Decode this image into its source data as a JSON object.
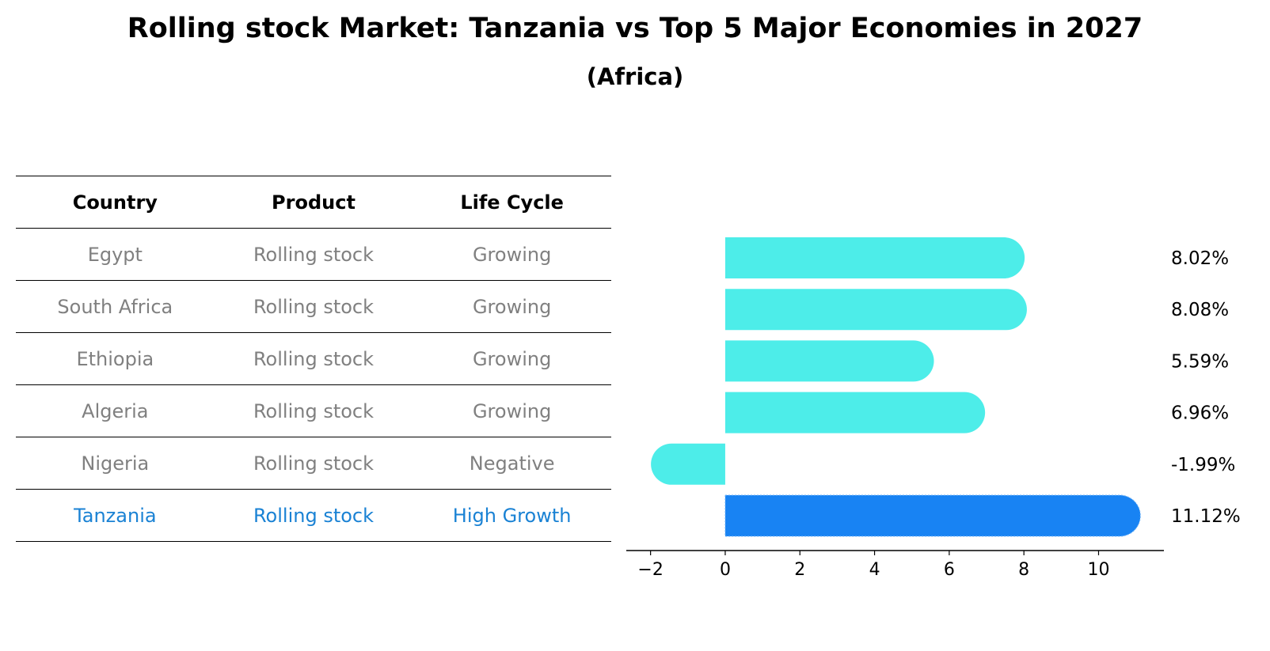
{
  "title": "Rolling stock Market: Tanzania vs Top 5 Major Economies in 2027",
  "subtitle": "(Africa)",
  "table": {
    "headers": [
      "Country",
      "Product",
      "Life Cycle"
    ],
    "rows": [
      [
        "Egypt",
        "Rolling stock",
        "Growing"
      ],
      [
        "South Africa",
        "Rolling stock",
        "Growing"
      ],
      [
        "Ethiopia",
        "Rolling stock",
        "Growing"
      ],
      [
        "Algeria",
        "Rolling stock",
        "Growing"
      ],
      [
        "Nigeria",
        "Rolling stock",
        "Negative"
      ],
      [
        "Tanzania",
        "Rolling stock",
        "High Growth"
      ]
    ]
  },
  "chart_data": {
    "type": "bar",
    "orientation": "horizontal",
    "categories": [
      "Egypt",
      "South Africa",
      "Ethiopia",
      "Algeria",
      "Nigeria",
      "Tanzania"
    ],
    "values": [
      8.02,
      8.08,
      5.59,
      6.96,
      -1.99,
      11.12
    ],
    "labels": [
      "8.02%",
      "8.08%",
      "5.59%",
      "6.96%",
      "-1.99%",
      "11.12%"
    ],
    "highlight": "Tanzania",
    "xticks": [
      -2,
      0,
      2,
      4,
      6,
      8,
      10
    ],
    "xtick_labels": [
      "−2",
      "0",
      "2",
      "4",
      "6",
      "8",
      "10"
    ],
    "xlim": [
      -2.65,
      11.75
    ],
    "colors": {
      "bar": "#4dede9",
      "highlight": "#1883f3",
      "highlight_text": "#1a82d4",
      "muted_text": "#808080"
    }
  }
}
